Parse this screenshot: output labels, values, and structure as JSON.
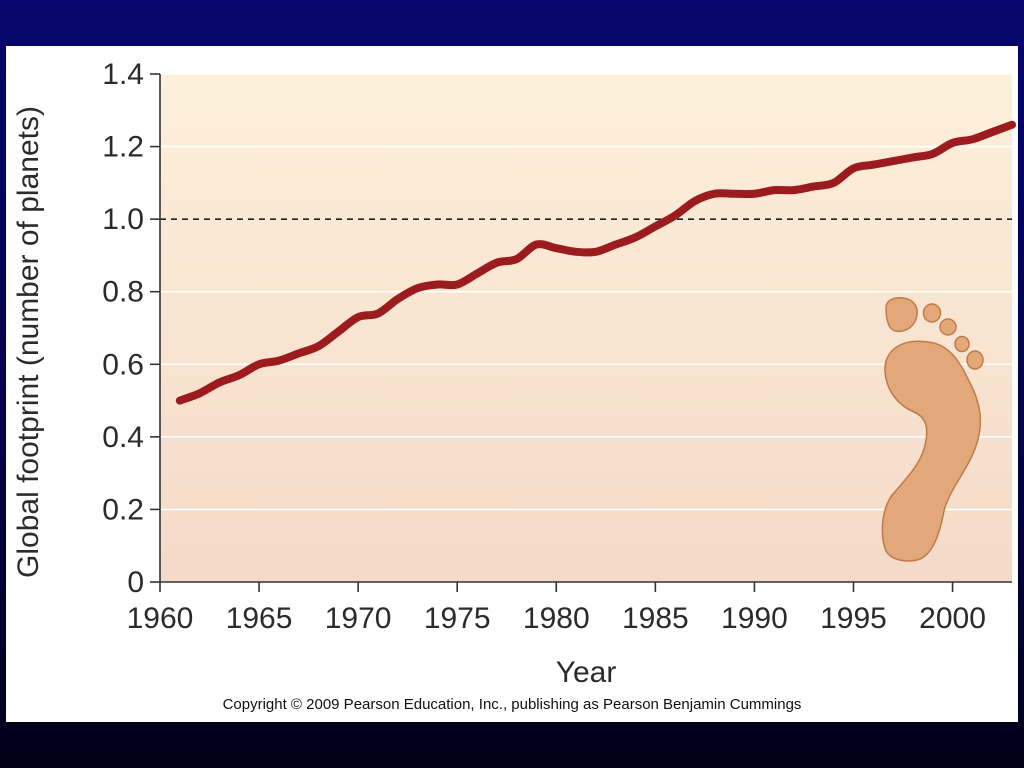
{
  "chart_data": {
    "type": "line",
    "title": "",
    "xlabel": "Year",
    "ylabel": "Global footprint (number of planets)",
    "xlim": [
      1960,
      2003
    ],
    "ylim": [
      0,
      1.4
    ],
    "x_ticks": [
      1960,
      1965,
      1970,
      1975,
      1980,
      1985,
      1990,
      1995,
      2000
    ],
    "y_ticks": [
      0,
      0.2,
      0.4,
      0.6,
      0.8,
      1.0,
      1.2,
      1.4
    ],
    "y_tick_labels": [
      "0",
      "0.2",
      "0.4",
      "0.6",
      "0.8",
      "1.0",
      "1.2",
      "1.4"
    ],
    "grid": "horizontal",
    "reference_line": {
      "y": 1.0,
      "style": "dashed"
    },
    "series": [
      {
        "color": "#9b1b1f",
        "x": [
          1961,
          1962,
          1963,
          1964,
          1965,
          1966,
          1967,
          1968,
          1969,
          1970,
          1971,
          1972,
          1973,
          1974,
          1975,
          1976,
          1977,
          1978,
          1979,
          1980,
          1981,
          1982,
          1983,
          1984,
          1985,
          1986,
          1987,
          1988,
          1989,
          1990,
          1991,
          1992,
          1993,
          1994,
          1995,
          1996,
          1997,
          1998,
          1999,
          2000,
          2001,
          2002,
          2003
        ],
        "y": [
          0.5,
          0.52,
          0.55,
          0.57,
          0.6,
          0.61,
          0.63,
          0.65,
          0.69,
          0.73,
          0.74,
          0.78,
          0.81,
          0.82,
          0.82,
          0.85,
          0.88,
          0.89,
          0.93,
          0.92,
          0.91,
          0.91,
          0.93,
          0.95,
          0.98,
          1.01,
          1.05,
          1.07,
          1.07,
          1.07,
          1.08,
          1.08,
          1.09,
          1.1,
          1.14,
          1.15,
          1.16,
          1.17,
          1.18,
          1.21,
          1.22,
          1.24,
          1.26
        ]
      }
    ]
  },
  "copyright": "Copyright © 2009 Pearson Education, Inc., publishing as Pearson Benjamin Cummings",
  "colors": {
    "plot_bg_top": "#fdf0da",
    "plot_bg_bottom": "#f4dac8",
    "line": "#9b1b1f",
    "footprint_fill": "#e2a87a",
    "footprint_stroke": "#c07a4a"
  },
  "icons": {
    "footprint": "footprint-icon"
  }
}
